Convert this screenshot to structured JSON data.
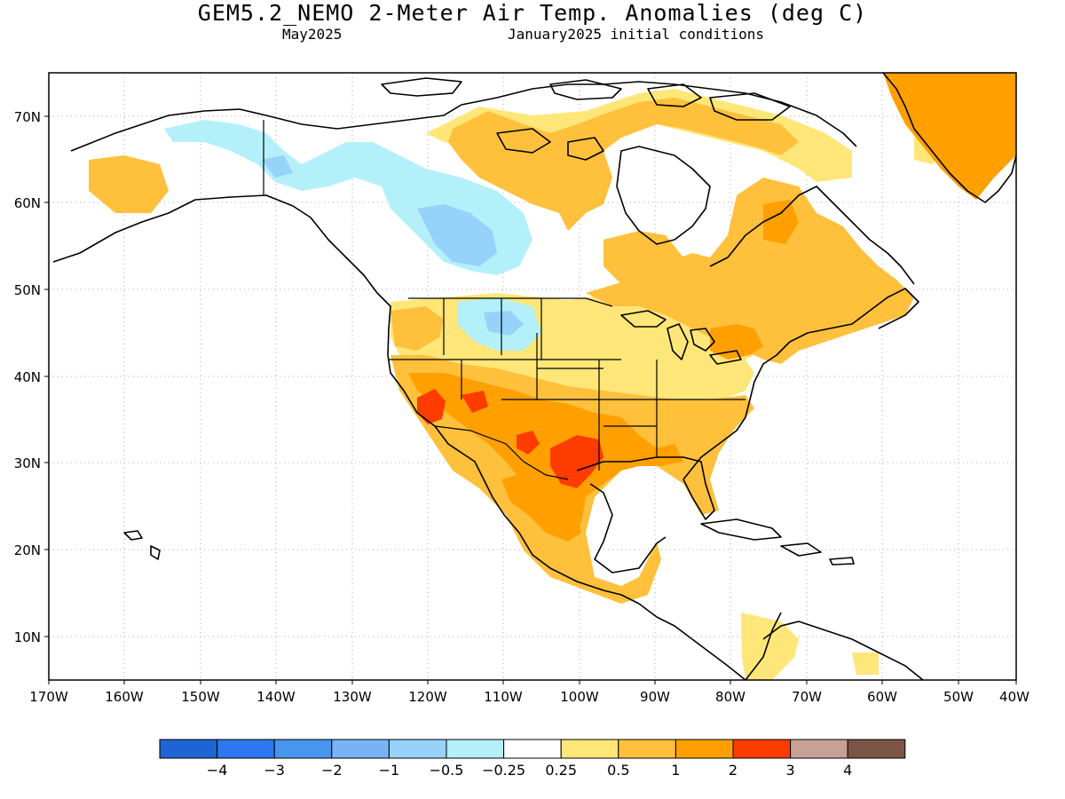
{
  "title": "GEM5.2_NEMO 2-Meter Air Temp. Anomalies (deg C)",
  "subtitle_left": "May2025",
  "subtitle_right": "January2025 initial conditions",
  "lat_labels": [
    "70N",
    "60N",
    "50N",
    "40N",
    "30N",
    "20N",
    "10N"
  ],
  "lon_labels": [
    "170W",
    "160W",
    "150W",
    "140W",
    "130W",
    "120W",
    "110W",
    "100W",
    "90W",
    "80W",
    "70W",
    "60W",
    "50W",
    "40W"
  ],
  "legend": {
    "colors": [
      "#1e64d2",
      "#2d78f0",
      "#4696f0",
      "#78b4f5",
      "#96d2fa",
      "#b4f0fa",
      "#ffffff",
      "#ffe678",
      "#ffc03c",
      "#ffa000",
      "#ff3c00",
      "#c8a096",
      "#7d5546"
    ],
    "labels": [
      "−4",
      "−3",
      "−2",
      "−1",
      "−0.5",
      "−0.25",
      "0.25",
      "0.5",
      "1",
      "2",
      "3",
      "4"
    ]
  },
  "palette": {
    "ocean": "#ffffff",
    "coast": "#000000",
    "grid": "#aaaaaa"
  }
}
